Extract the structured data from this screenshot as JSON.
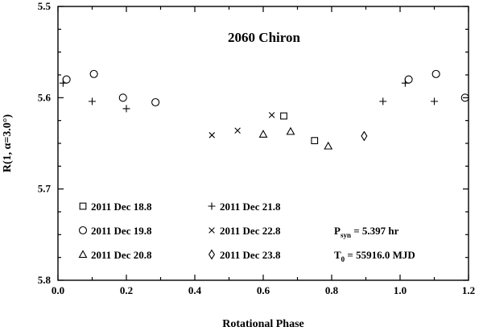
{
  "chart_data": {
    "type": "scatter",
    "title": "2060 Chiron",
    "xlabel": "Rotational Phase",
    "ylabel": "R(1, α=3.0°)",
    "xlim": [
      0.0,
      1.2
    ],
    "ylim": [
      5.8,
      5.5
    ],
    "y_inverted": true,
    "x_ticks": [
      "0.0",
      "0.2",
      "0.4",
      "0.6",
      "0.8",
      "1.0",
      "1.2"
    ],
    "y_ticks": [
      "5.5",
      "5.6",
      "5.7",
      "5.8"
    ],
    "grid": false,
    "series": [
      {
        "name": "2011 Dec 18.8",
        "marker": "square",
        "points": [
          [
            0.66,
            5.62
          ],
          [
            0.75,
            5.647
          ]
        ]
      },
      {
        "name": "2011 Dec 19.8",
        "marker": "circle",
        "points": [
          [
            0.025,
            5.58
          ],
          [
            0.105,
            5.574
          ],
          [
            0.19,
            5.6
          ],
          [
            0.285,
            5.605
          ],
          [
            1.025,
            5.58
          ],
          [
            1.105,
            5.574
          ],
          [
            1.19,
            5.6
          ]
        ]
      },
      {
        "name": "2011 Dec 20.8",
        "marker": "triangle",
        "points": [
          [
            0.6,
            5.64
          ],
          [
            0.68,
            5.637
          ],
          [
            0.79,
            5.653
          ]
        ]
      },
      {
        "name": "2011 Dec 21.8",
        "marker": "plus",
        "points": [
          [
            0.015,
            5.584
          ],
          [
            0.1,
            5.604
          ],
          [
            0.2,
            5.612
          ],
          [
            0.95,
            5.604
          ],
          [
            1.015,
            5.584
          ],
          [
            1.1,
            5.604
          ]
        ]
      },
      {
        "name": "2011 Dec 22.8",
        "marker": "cross",
        "points": [
          [
            0.45,
            5.641
          ],
          [
            0.525,
            5.636
          ],
          [
            0.625,
            5.619
          ]
        ]
      },
      {
        "name": "2011 Dec 23.8",
        "marker": "diamond",
        "points": [
          [
            0.895,
            5.642
          ]
        ]
      }
    ],
    "annotations": [
      {
        "main": "P",
        "sub": "syn",
        "rest": " = 5.397 hr"
      },
      {
        "main": "T",
        "sub": "0",
        "rest": " = 55916.0 MJD"
      }
    ]
  }
}
